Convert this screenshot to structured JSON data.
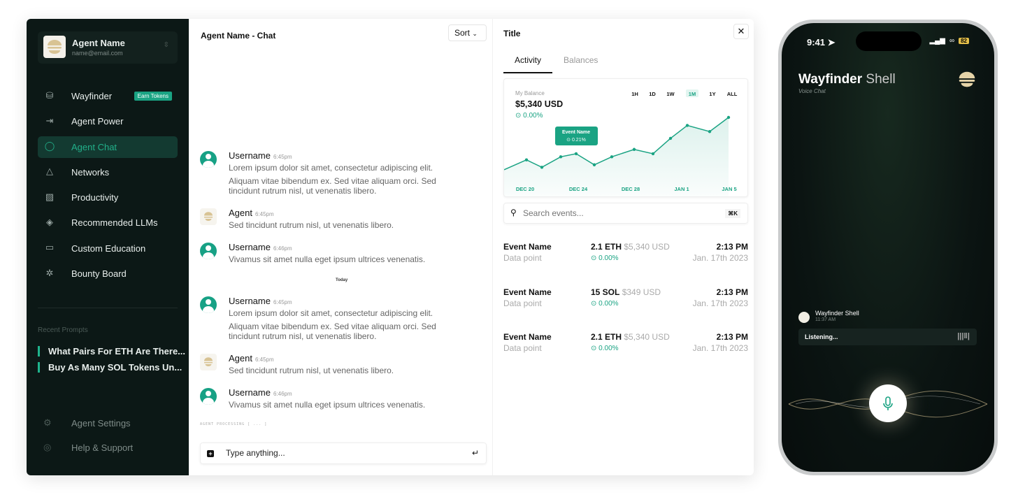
{
  "sidebar": {
    "account": {
      "name": "Agent Name",
      "email": "name@email.com"
    },
    "items": [
      {
        "label": "Wayfinder",
        "icon": "database-search-icon",
        "badge": "Earn Tokens"
      },
      {
        "label": "Agent Power",
        "icon": "login-arrow-icon"
      },
      {
        "label": "Agent Chat",
        "icon": "chat-bubble-icon",
        "active": true
      },
      {
        "label": "Networks",
        "icon": "network-icon"
      },
      {
        "label": "Productivity",
        "icon": "chart-icon"
      },
      {
        "label": "Recommended LLMs",
        "icon": "diamond-grid-icon"
      },
      {
        "label": "Custom Education",
        "icon": "monitor-icon"
      },
      {
        "label": "Bounty Board",
        "icon": "person-star-icon"
      }
    ],
    "recent_label": "Recent Prompts",
    "recent": [
      "What Pairs For ETH Are There...",
      "Buy As Many SOL Tokens Un..."
    ],
    "footer": [
      {
        "label": "Agent Settings",
        "icon": "gear-icon"
      },
      {
        "label": "Help & Support",
        "icon": "lifebuoy-icon"
      }
    ]
  },
  "chat": {
    "title": "Agent Name - Chat",
    "sort_label": "Sort",
    "messages": [
      {
        "user": "Username",
        "time": "6:45pm",
        "type": "user",
        "text": "Lorem ipsum dolor sit amet, consectetur adipiscing elit.",
        "text2": "Aliquam vitae bibendum ex. Sed vitae aliquam orci. Sed tincidunt rutrum nisl, ut venenatis libero."
      },
      {
        "user": "Agent",
        "time": "6:45pm",
        "type": "agent",
        "text": "Sed tincidunt rutrum nisl, ut venenatis libero."
      },
      {
        "user": "Username",
        "time": "6:46pm",
        "type": "user",
        "text": "Vivamus sit amet nulla eget ipsum ultrices venenatis."
      },
      {
        "user": "Username",
        "time": "6:45pm",
        "type": "user",
        "text": "Lorem ipsum dolor sit amet, consectetur adipiscing elit.",
        "text2": "Aliquam vitae bibendum ex. Sed vitae aliquam orci. Sed tincidunt rutrum nisl, ut venenatis libero."
      },
      {
        "user": "Agent",
        "time": "6:45pm",
        "type": "agent",
        "text": "Sed tincidunt rutrum nisl, ut venenatis libero."
      },
      {
        "user": "Username",
        "time": "6:46pm",
        "type": "user",
        "text": "Vivamus sit amet nulla eget ipsum ultrices venenatis."
      }
    ],
    "divider": "Today",
    "processing": "AGENT PROCESSING [ ... ]",
    "input_placeholder": "Type anything..."
  },
  "panel": {
    "title": "Title",
    "tabs": [
      "Activity",
      "Balances"
    ],
    "balance_label": "My Balance",
    "balance": "$5,340 USD",
    "balance_change": "0.00%",
    "ranges": [
      "1H",
      "1D",
      "1W",
      "1M",
      "1Y",
      "ALL"
    ],
    "active_range": "1M",
    "tooltip": {
      "title": "Event Name",
      "change": "0.21%"
    },
    "search_placeholder": "Search events...",
    "search_shortcut": "⌘K",
    "events": [
      {
        "name": "Event Name",
        "sub": "Data point",
        "amount": "2.1 ETH",
        "usd": "$5,340 USD",
        "change": "0.00%",
        "time": "2:13 PM",
        "date": "Jan. 17th 2023"
      },
      {
        "name": "Event Name",
        "sub": "Data point",
        "amount": "15 SOL",
        "usd": "$349 USD",
        "change": "0.00%",
        "time": "2:13 PM",
        "date": "Jan. 17th 2023"
      },
      {
        "name": "Event Name",
        "sub": "Data point",
        "amount": "2.1 ETH",
        "usd": "$5,340 USD",
        "change": "0.00%",
        "time": "2:13 PM",
        "date": "Jan. 17th 2023"
      }
    ]
  },
  "chart_data": {
    "type": "line",
    "x_ticks": [
      "DEC 20",
      "DEC 24",
      "DEC 28",
      "JAN 1",
      "JAN 5"
    ],
    "values": [
      40,
      56,
      44,
      61,
      66,
      48,
      61,
      73,
      66,
      91,
      112,
      102,
      125
    ],
    "ylim": [
      0,
      140
    ],
    "color": "#1aa383",
    "grid": false
  },
  "phone": {
    "time": "9:41",
    "battery": "82",
    "title_bold": "Wayfinder",
    "title_light": "Shell",
    "subtitle": "Voice Chat",
    "message_sender": "Wayfinder Shell",
    "message_time": "11:37 AM",
    "listening": "Listening..."
  },
  "colors": {
    "accent": "#1aa383",
    "sidebar_bg": "#0c1816",
    "logo_gold": "#d8c394"
  }
}
